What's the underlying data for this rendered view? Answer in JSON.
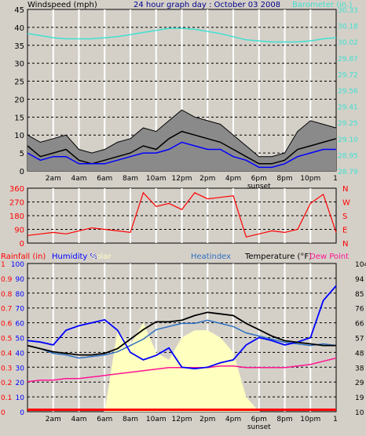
{
  "title": "24 hour graph day : October 03 2008",
  "x_ticks": [
    "2am",
    "4am",
    "6am",
    "8am",
    "10am",
    "12pm",
    "2pm",
    "4pm",
    "6pm",
    "8pm",
    "10pm"
  ],
  "end_tick": "1",
  "sunset_label": "sunset",
  "colors": {
    "wind": "#000000",
    "gust_fill": "#8a8a8a",
    "avg": "#0000ff",
    "barometer": "#40e0d0",
    "direction": "#ff0000",
    "humidity": "#0000ff",
    "solar": "#ffffc0",
    "temperature": "#000000",
    "heatindex": "#3070c0",
    "dewpoint": "#ff1493",
    "rainfall": "#ff0000",
    "plot_bg": "#d4d0c8",
    "grid": "#ffffff"
  },
  "chart_data": [
    {
      "type": "line",
      "ylabel": "Windspeed (mph)",
      "ylim": [
        0,
        45
      ],
      "y_ticks": [
        "0",
        "5",
        "10",
        "15",
        "20",
        "25",
        "30",
        "35",
        "40",
        "45"
      ],
      "y2label": "Barometer (in.)",
      "y2lim": [
        28.79,
        30.33
      ],
      "y2_ticks": [
        "28.79",
        "28.95",
        "29.10",
        "29.25",
        "29.41",
        "29.56",
        "29.72",
        "29.87",
        "30.02",
        "30.18",
        "30.33"
      ],
      "series": [
        {
          "name": "Barometer",
          "axis": "right",
          "x": [
            0,
            1,
            2,
            3,
            4,
            5,
            6,
            7,
            8,
            9,
            10,
            11,
            12,
            13,
            14,
            15,
            16,
            17,
            18,
            19,
            20,
            21,
            22,
            23,
            24
          ],
          "values": [
            30.1,
            30.08,
            30.06,
            30.05,
            30.05,
            30.05,
            30.06,
            30.07,
            30.09,
            30.11,
            30.13,
            30.15,
            30.15,
            30.14,
            30.12,
            30.1,
            30.07,
            30.04,
            30.03,
            30.02,
            30.02,
            30.02,
            30.03,
            30.05,
            30.06
          ]
        },
        {
          "name": "Windspeed",
          "axis": "left",
          "x": [
            0,
            1,
            2,
            3,
            4,
            5,
            6,
            7,
            8,
            9,
            10,
            11,
            12,
            13,
            14,
            15,
            16,
            17,
            18,
            19,
            20,
            21,
            22,
            23,
            24
          ],
          "values": [
            7,
            4,
            5,
            6,
            3,
            2,
            3,
            4,
            5,
            7,
            6,
            9,
            11,
            10,
            9,
            8,
            6,
            4,
            2,
            2,
            3,
            6,
            7,
            8,
            9
          ]
        },
        {
          "name": "Gust",
          "axis": "left",
          "x": [
            0,
            1,
            2,
            3,
            4,
            5,
            6,
            7,
            8,
            9,
            10,
            11,
            12,
            13,
            14,
            15,
            16,
            17,
            18,
            19,
            20,
            21,
            22,
            23,
            24
          ],
          "values": [
            10,
            8,
            9,
            10,
            6,
            5,
            6,
            8,
            9,
            12,
            11,
            14,
            17,
            15,
            14,
            13,
            10,
            7,
            4,
            4,
            5,
            11,
            14,
            13,
            12
          ]
        },
        {
          "name": "Average",
          "axis": "left",
          "x": [
            0,
            1,
            2,
            3,
            4,
            5,
            6,
            7,
            8,
            9,
            10,
            11,
            12,
            13,
            14,
            15,
            16,
            17,
            18,
            19,
            20,
            21,
            22,
            23,
            24
          ],
          "values": [
            5,
            3,
            4,
            4,
            2,
            2,
            2,
            3,
            4,
            5,
            5,
            6,
            8,
            7,
            6,
            6,
            4,
            3,
            1,
            1,
            2,
            4,
            5,
            6,
            6
          ]
        }
      ]
    },
    {
      "type": "line",
      "ylim": [
        0,
        360
      ],
      "y_ticks": [
        "0",
        "90",
        "180",
        "270",
        "360"
      ],
      "compass": [
        "N",
        "W",
        "S",
        "E",
        "N"
      ],
      "series": [
        {
          "name": "Direction",
          "x": [
            0,
            1,
            2,
            3,
            4,
            5,
            6,
            7,
            8,
            9,
            10,
            11,
            12,
            13,
            14,
            15,
            16,
            17,
            18,
            19,
            20,
            21,
            22,
            23,
            24
          ],
          "values": [
            50,
            60,
            70,
            60,
            80,
            100,
            90,
            80,
            70,
            330,
            240,
            260,
            220,
            330,
            290,
            300,
            310,
            40,
            60,
            80,
            70,
            90,
            260,
            320,
            70
          ]
        }
      ]
    },
    {
      "type": "line",
      "ylabel": "Rainfall (in)",
      "ylim": [
        0,
        1.0
      ],
      "y_ticks": [
        "0",
        "0.1",
        "0.2",
        "0.3",
        "0.4",
        "0.5",
        "0.6",
        "0.7",
        "0.8",
        "0.9",
        "1"
      ],
      "humidity_label": "Humidity %",
      "humidity_ticks": [
        "0",
        "10",
        "20",
        "30",
        "40",
        "50",
        "60",
        "70",
        "80",
        "90",
        "100"
      ],
      "solar_label": "Solar",
      "heatindex_label": "Heatindex",
      "temperature_label": "Temperature (°F)",
      "dewpoint_label": "Dew Point",
      "y2lim": [
        10,
        104
      ],
      "y2_ticks": [
        "10",
        "19",
        "29",
        "38",
        "48",
        "57",
        "66",
        "76",
        "85",
        "94",
        "104"
      ],
      "series": [
        {
          "name": "Solar",
          "axis": "left",
          "x": [
            0,
            1,
            2,
            3,
            4,
            5,
            6,
            7,
            8,
            9,
            10,
            11,
            12,
            13,
            14,
            15,
            16,
            17,
            18,
            19,
            20,
            21,
            22,
            23,
            24
          ],
          "values": [
            0,
            0,
            0,
            0,
            0,
            0,
            0,
            0.55,
            0.45,
            0.6,
            0.4,
            0.35,
            0.5,
            0.55,
            0.55,
            0.5,
            0.4,
            0.1,
            0,
            0,
            0,
            0,
            0,
            0,
            0
          ]
        },
        {
          "name": "Humidity",
          "axis": "left",
          "x": [
            0,
            1,
            2,
            3,
            4,
            5,
            6,
            7,
            8,
            9,
            10,
            11,
            12,
            13,
            14,
            15,
            16,
            17,
            18,
            19,
            20,
            21,
            22,
            23,
            24
          ],
          "values": [
            0.48,
            0.47,
            0.45,
            0.55,
            0.58,
            0.6,
            0.62,
            0.55,
            0.4,
            0.35,
            0.38,
            0.43,
            0.3,
            0.29,
            0.3,
            0.33,
            0.35,
            0.45,
            0.5,
            0.48,
            0.45,
            0.47,
            0.5,
            0.75,
            0.85
          ]
        },
        {
          "name": "Temperature",
          "axis": "right",
          "x": [
            0,
            1,
            2,
            3,
            4,
            5,
            6,
            7,
            8,
            9,
            10,
            11,
            12,
            13,
            14,
            15,
            16,
            17,
            18,
            19,
            20,
            21,
            22,
            23,
            24
          ],
          "values": [
            52,
            50,
            48,
            47,
            46,
            46,
            47,
            50,
            56,
            62,
            67,
            67,
            68,
            71,
            73,
            72,
            71,
            66,
            62,
            58,
            55,
            54,
            53,
            52,
            52
          ]
        },
        {
          "name": "Heatindex",
          "axis": "right",
          "x": [
            0,
            1,
            2,
            3,
            4,
            5,
            6,
            7,
            8,
            9,
            10,
            11,
            12,
            13,
            14,
            15,
            16,
            17,
            18,
            19,
            20,
            21,
            22,
            23,
            24
          ],
          "values": [
            52,
            50,
            47,
            46,
            44,
            45,
            46,
            48,
            52,
            56,
            62,
            64,
            66,
            66,
            68,
            66,
            64,
            60,
            58,
            56,
            54,
            53,
            52,
            53,
            52
          ]
        },
        {
          "name": "Dew Point",
          "axis": "right",
          "x": [
            0,
            1,
            2,
            3,
            4,
            5,
            6,
            7,
            8,
            9,
            10,
            11,
            12,
            13,
            14,
            15,
            16,
            17,
            18,
            19,
            20,
            21,
            22,
            23,
            24
          ],
          "values": [
            29,
            30,
            30,
            31,
            31,
            32,
            33,
            34,
            35,
            36,
            37,
            38,
            38,
            38,
            38,
            39,
            39,
            38,
            38,
            38,
            38,
            39,
            40,
            42,
            44
          ]
        },
        {
          "name": "Rainfall",
          "axis": "left",
          "x": [
            0,
            24
          ],
          "values": [
            0,
            0
          ]
        }
      ]
    }
  ]
}
